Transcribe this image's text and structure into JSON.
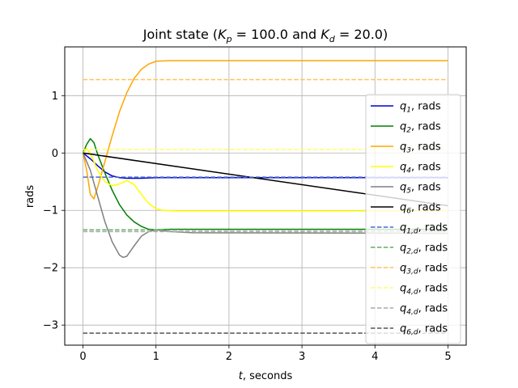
{
  "chart_data": {
    "type": "line",
    "title": "Joint state ($K_p = 100.0$ and $K_d = 20.0$)",
    "title_parts": {
      "prefix": "Joint state (",
      "kp_sym": "K",
      "kp_sub": "p",
      "kp_val": " = 100.0",
      "mid": " and ",
      "kd_sym": "K",
      "kd_sub": "d",
      "kd_val": " = 20.0",
      "suffix": ")"
    },
    "xlabel": "$t$, seconds",
    "xlabel_parts": {
      "var": "t",
      "rest": ", seconds"
    },
    "ylabel": "rads",
    "xlim": [
      -0.25,
      5.25
    ],
    "ylim": [
      -3.35,
      1.85
    ],
    "x_ticks": [
      0,
      1,
      2,
      3,
      4,
      5
    ],
    "x_tick_labels": [
      "0",
      "1",
      "2",
      "3",
      "4",
      "5"
    ],
    "y_ticks": [
      -3,
      -2,
      -1,
      0,
      1
    ],
    "y_tick_labels": [
      "−3",
      "−2",
      "−1",
      "0",
      "1"
    ],
    "grid": true,
    "legend_position": "right",
    "series": [
      {
        "name": "$q_1$, rads",
        "sym": "q",
        "sub": "1",
        "unit": ", rads",
        "color": "#0000cc",
        "style": "solid",
        "points": [
          [
            0,
            0
          ],
          [
            0.1,
            -0.1
          ],
          [
            0.2,
            -0.22
          ],
          [
            0.3,
            -0.33
          ],
          [
            0.4,
            -0.4
          ],
          [
            0.5,
            -0.43
          ],
          [
            0.6,
            -0.44
          ],
          [
            0.8,
            -0.44
          ],
          [
            1,
            -0.43
          ],
          [
            5,
            -0.43
          ]
        ]
      },
      {
        "name": "$q_2$, rads",
        "sym": "q",
        "sub": "2",
        "unit": ", rads",
        "color": "#008000",
        "style": "solid",
        "points": [
          [
            0,
            0
          ],
          [
            0.05,
            0.15
          ],
          [
            0.1,
            0.25
          ],
          [
            0.15,
            0.18
          ],
          [
            0.2,
            -0.02
          ],
          [
            0.3,
            -0.35
          ],
          [
            0.4,
            -0.65
          ],
          [
            0.5,
            -0.9
          ],
          [
            0.6,
            -1.08
          ],
          [
            0.7,
            -1.2
          ],
          [
            0.8,
            -1.28
          ],
          [
            0.9,
            -1.33
          ],
          [
            1,
            -1.34
          ],
          [
            1.2,
            -1.33
          ],
          [
            5,
            -1.33
          ]
        ]
      },
      {
        "name": "$q_3$, rads",
        "sym": "q",
        "sub": "3",
        "unit": ", rads",
        "color": "#ffa500",
        "style": "solid",
        "points": [
          [
            0,
            0
          ],
          [
            0.05,
            -0.3
          ],
          [
            0.1,
            -0.72
          ],
          [
            0.15,
            -0.8
          ],
          [
            0.2,
            -0.6
          ],
          [
            0.3,
            -0.15
          ],
          [
            0.4,
            0.3
          ],
          [
            0.5,
            0.72
          ],
          [
            0.6,
            1.05
          ],
          [
            0.7,
            1.3
          ],
          [
            0.8,
            1.46
          ],
          [
            0.9,
            1.55
          ],
          [
            1,
            1.6
          ],
          [
            1.2,
            1.61
          ],
          [
            5,
            1.61
          ]
        ]
      },
      {
        "name": "$q_4$, rads",
        "sym": "q",
        "sub": "4",
        "unit": ", rads",
        "color": "#ffff00",
        "style": "solid",
        "points": [
          [
            0,
            0
          ],
          [
            0.05,
            0.08
          ],
          [
            0.1,
            0.0
          ],
          [
            0.2,
            -0.3
          ],
          [
            0.3,
            -0.5
          ],
          [
            0.4,
            -0.57
          ],
          [
            0.5,
            -0.54
          ],
          [
            0.6,
            -0.48
          ],
          [
            0.7,
            -0.55
          ],
          [
            0.8,
            -0.72
          ],
          [
            0.9,
            -0.88
          ],
          [
            1,
            -0.97
          ],
          [
            1.1,
            -1.0
          ],
          [
            1.3,
            -1.01
          ],
          [
            5,
            -1.01
          ]
        ]
      },
      {
        "name": "$q_5$, rads",
        "sym": "q",
        "sub": "5",
        "unit": ", rads",
        "color": "#808080",
        "style": "solid",
        "points": [
          [
            0,
            0
          ],
          [
            0.1,
            -0.3
          ],
          [
            0.2,
            -0.75
          ],
          [
            0.3,
            -1.2
          ],
          [
            0.4,
            -1.55
          ],
          [
            0.5,
            -1.78
          ],
          [
            0.55,
            -1.82
          ],
          [
            0.6,
            -1.8
          ],
          [
            0.7,
            -1.62
          ],
          [
            0.8,
            -1.45
          ],
          [
            0.9,
            -1.37
          ],
          [
            1,
            -1.34
          ],
          [
            1.2,
            -1.37
          ],
          [
            1.5,
            -1.39
          ],
          [
            5,
            -1.4
          ]
        ]
      },
      {
        "name": "$q_6$, rads",
        "sym": "q",
        "sub": "6",
        "unit": ", rads",
        "color": "#000000",
        "style": "solid",
        "points": [
          [
            0,
            0
          ],
          [
            5,
            -0.92
          ]
        ]
      },
      {
        "name": "$q_{1,d}$, rads",
        "sym": "q",
        "sub": "1,d",
        "unit": ", rads",
        "color": "#4a6bd0",
        "style": "dashed",
        "points": [
          [
            0,
            -0.42
          ],
          [
            5,
            -0.42
          ]
        ]
      },
      {
        "name": "$q_{2,d}$, rads",
        "sym": "q",
        "sub": "2,d",
        "unit": ", rads",
        "color": "#5fae5f",
        "style": "dashed",
        "points": [
          [
            0,
            -1.34
          ],
          [
            5,
            -1.34
          ]
        ]
      },
      {
        "name": "$q_{3,d}$, rads",
        "sym": "q",
        "sub": "3,d",
        "unit": ", rads",
        "color": "#ffc25c",
        "style": "dashed",
        "points": [
          [
            0,
            1.28
          ],
          [
            5,
            1.28
          ]
        ]
      },
      {
        "name": "$q_{4,d}$, rads",
        "sym": "q",
        "sub": "4,d",
        "unit": ", rads",
        "color": "#ffff66",
        "style": "dashed",
        "points": [
          [
            0,
            0.06
          ],
          [
            5,
            0.06
          ]
        ]
      },
      {
        "name": "$q_{4,d}$, rads",
        "sym": "q",
        "sub": "4,d",
        "unit": ", rads",
        "color": "#a9a9a9",
        "style": "dashed",
        "points": [
          [
            0,
            -1.37
          ],
          [
            5,
            -1.37
          ]
        ]
      },
      {
        "name": "$q_{6,d}$, rads",
        "sym": "q",
        "sub": "6,d",
        "unit": ", rads",
        "color": "#555555",
        "style": "dashed",
        "points": [
          [
            0,
            -3.14
          ],
          [
            5,
            -3.14
          ]
        ]
      }
    ]
  }
}
